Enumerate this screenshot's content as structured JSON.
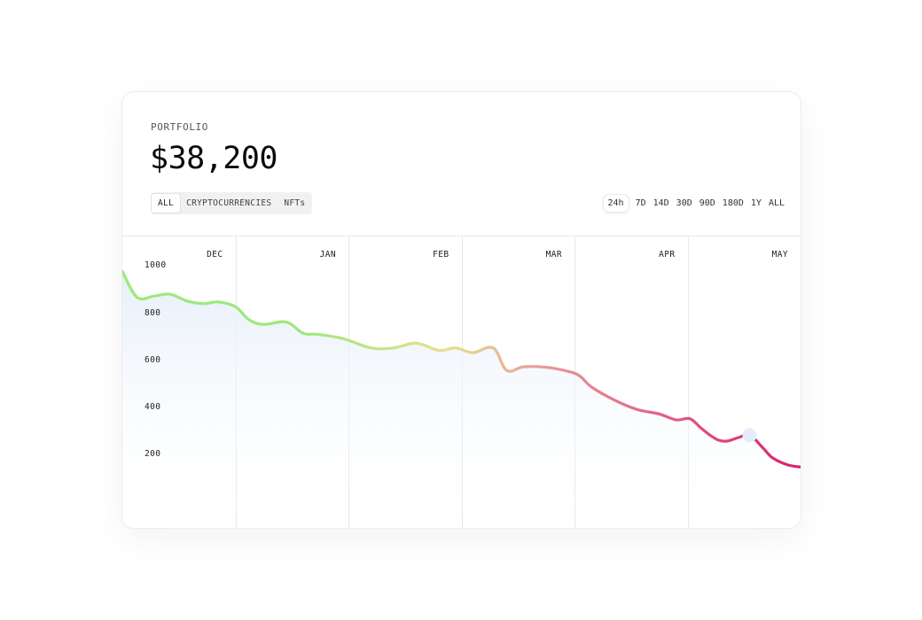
{
  "portfolio": {
    "label": "PORTFOLIO",
    "total": "$38,200"
  },
  "filters": [
    {
      "label": "ALL",
      "active": true
    },
    {
      "label": "CRYPTOCURRENCIES",
      "active": false
    },
    {
      "label": "NFTs",
      "active": false
    }
  ],
  "ranges": [
    {
      "label": "24h",
      "active": true
    },
    {
      "label": "7D",
      "active": false
    },
    {
      "label": "14D",
      "active": false
    },
    {
      "label": "30D",
      "active": false
    },
    {
      "label": "90D",
      "active": false
    },
    {
      "label": "180D",
      "active": false
    },
    {
      "label": "1Y",
      "active": false
    },
    {
      "label": "ALL",
      "active": false
    }
  ],
  "colors": {
    "line_start": "#9de87d",
    "line_mid": "#e8de8f",
    "line_upper": "#e89a9a",
    "line_end": "#db1f6c",
    "area_fill": "#e6eff9",
    "grid": "#e7e7e7",
    "marker": "#e3eefb"
  },
  "chart_data": {
    "type": "area",
    "title": "",
    "xlabel": "",
    "ylabel": "",
    "month_labels": [
      "DEC",
      "JAN",
      "FEB",
      "MAR",
      "APR",
      "MAY"
    ],
    "y_ticks": [
      1000,
      800,
      600,
      400,
      200
    ],
    "ylim": [
      60,
      1020
    ],
    "x": [
      0,
      0.13,
      0.28,
      0.42,
      0.58,
      0.72,
      0.85,
      1.0,
      1.12,
      1.25,
      1.45,
      1.6,
      1.72,
      1.95,
      2.2,
      2.4,
      2.6,
      2.8,
      2.95,
      3.1,
      3.28,
      3.4,
      3.55,
      3.75,
      3.95,
      4.05,
      4.15,
      4.35,
      4.55,
      4.75,
      4.9,
      5.02,
      5.12,
      5.2,
      5.27,
      5.35,
      5.45,
      5.55,
      5.67,
      5.75,
      5.88,
      6.0
    ],
    "y": [
      985,
      875,
      880,
      888,
      858,
      848,
      855,
      835,
      780,
      760,
      770,
      722,
      718,
      700,
      660,
      660,
      680,
      650,
      660,
      640,
      660,
      565,
      580,
      578,
      560,
      540,
      495,
      440,
      400,
      380,
      355,
      360,
      320,
      290,
      270,
      265,
      280,
      290,
      235,
      195,
      165,
      155
    ],
    "marker": {
      "x": 5.55,
      "y": 290
    },
    "grid": "vertical month dividers",
    "legend": "none"
  }
}
